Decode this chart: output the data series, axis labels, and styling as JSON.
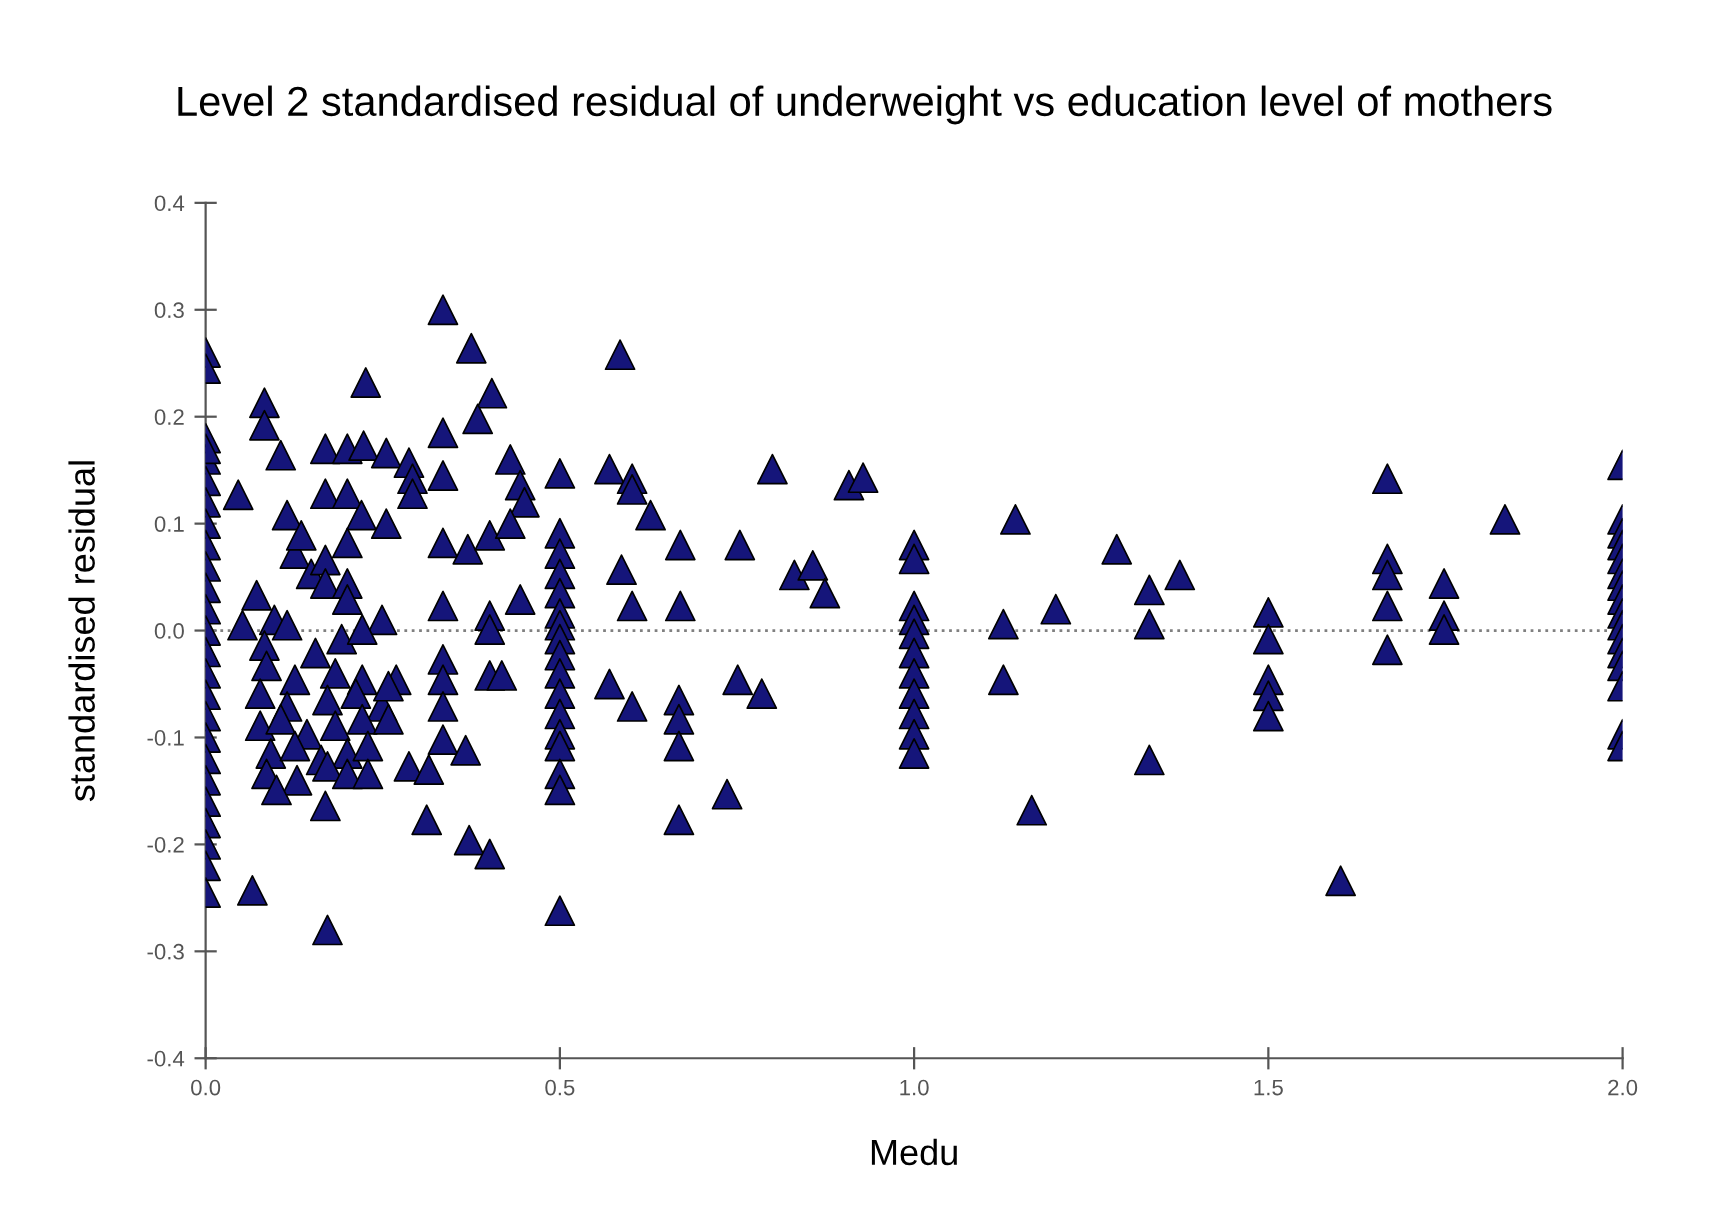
{
  "chart_data": {
    "type": "scatter",
    "title": "Level 2 standardised residual of underweight vs education level of mothers",
    "xlabel": "Medu",
    "ylabel": "standardised residual",
    "marker": "triangle",
    "grid": false,
    "legend": false,
    "xlim": [
      0,
      2.0
    ],
    "ylim": [
      -0.4,
      0.4
    ],
    "xticks": [
      {
        "value": 0,
        "label": "0.0"
      },
      {
        "value": 0.5,
        "label": "0.5"
      },
      {
        "value": 1.0,
        "label": "1.0"
      },
      {
        "value": 1.5,
        "label": "1.5"
      },
      {
        "value": 2.0,
        "label": "2.0"
      }
    ],
    "yticks": [
      {
        "value": -0.4,
        "label": "-0.4"
      },
      {
        "value": -0.3,
        "label": "-0.3"
      },
      {
        "value": -0.2,
        "label": "-0.2"
      },
      {
        "value": -0.1,
        "label": "-0.1"
      },
      {
        "value": 0,
        "label": "0.0"
      },
      {
        "value": 0.1,
        "label": "0.1"
      },
      {
        "value": 0.2,
        "label": "0.2"
      },
      {
        "value": 0.3,
        "label": "0.3"
      },
      {
        "value": 0.4,
        "label": "0.4"
      }
    ],
    "ref_lines": [
      {
        "axis": "y",
        "value": 0,
        "color": "#808080",
        "line_style": "dotted"
      }
    ],
    "series": [
      {
        "color": "#15157a",
        "x": [
          0,
          0,
          0,
          0,
          0,
          0,
          0,
          0,
          0,
          0,
          0,
          0,
          0,
          0,
          0,
          0,
          0,
          0,
          0,
          0,
          0,
          0,
          0,
          0,
          0,
          0.335,
          0.375,
          0.585,
          0.226,
          0.404,
          0.083,
          0.083,
          0.335,
          0.384,
          0.106,
          0.169,
          0.2,
          0.223,
          0.255,
          0.287,
          0.292,
          0.292,
          0.335,
          0.43,
          0.444,
          0.45,
          0.5,
          0.57,
          0.602,
          0.602,
          0.628,
          0.67,
          0.587,
          0.602,
          0.67,
          0.046,
          0.115,
          0.169,
          0.2,
          0.22,
          0.255,
          0.2,
          0.335,
          0.37,
          0.401,
          0.43,
          0.126,
          0.135,
          0.149,
          0.169,
          0.169,
          0.2,
          0.2,
          0.072,
          0.052,
          0.097,
          0.115,
          0.249,
          0.335,
          0.401,
          0.401,
          0.444,
          0.5,
          0.5,
          0.5,
          0.5,
          0.5,
          0.5,
          0.5,
          0.5,
          0.5,
          0.5,
          0.5,
          0.5,
          0.5,
          0.5,
          0.5,
          0.5,
          0.083,
          0.155,
          0.192,
          0.221,
          0.086,
          0.126,
          0.183,
          0.221,
          0.269,
          0.077,
          0.115,
          0.172,
          0.212,
          0.249,
          0.258,
          0.077,
          0.106,
          0.143,
          0.183,
          0.221,
          0.258,
          0.092,
          0.126,
          0.163,
          0.2,
          0.229,
          0.086,
          0.129,
          0.172,
          0.2,
          0.229,
          0.1,
          0.287,
          0.315,
          0.335,
          0.367,
          0.335,
          0.335,
          0.335,
          0.401,
          0.418,
          0.57,
          0.602,
          0.668,
          0.668,
          0.668,
          0.668,
          0.169,
          0.312,
          0.372,
          0.401,
          0.066,
          0.172,
          0.8,
          0.908,
          0.928,
          0.754,
          0.831,
          0.857,
          0.874,
          0.751,
          0.785,
          0.736,
          1.0,
          1.0,
          1.0,
          1.0,
          1.0,
          1.0,
          1.0,
          1.0,
          1.0,
          1.0,
          1.0,
          1.143,
          1.126,
          1.126,
          1.2,
          1.166,
          1.286,
          1.332,
          1.375,
          1.332,
          1.332,
          1.5,
          1.5,
          1.5,
          1.5,
          1.5,
          1.602,
          1.668,
          1.668,
          1.668,
          1.668,
          1.668,
          1.748,
          1.748,
          1.748,
          1.834,
          2.0,
          2.0,
          2.0,
          2.0,
          2.0,
          2.0,
          2.0,
          2.0,
          2.0,
          2.0,
          2.0,
          2.0,
          2.0,
          2.0,
          2.0,
          2.0
        ],
        "values": [
          0.26,
          0.245,
          0.18,
          0.16,
          0.14,
          0.12,
          0.1,
          0.08,
          0.06,
          0.04,
          0.02,
          0.0,
          -0.02,
          -0.04,
          -0.06,
          -0.08,
          -0.1,
          -0.12,
          -0.14,
          -0.16,
          -0.18,
          -0.2,
          -0.22,
          -0.245,
          0.17,
          0.3,
          0.264,
          0.258,
          0.232,
          0.222,
          0.213,
          0.192,
          0.185,
          0.198,
          0.164,
          0.17,
          0.17,
          0.173,
          0.166,
          0.157,
          0.142,
          0.128,
          0.145,
          0.16,
          0.136,
          0.12,
          0.147,
          0.151,
          0.142,
          0.132,
          0.108,
          0.08,
          0.057,
          0.023,
          0.023,
          0.127,
          0.108,
          0.128,
          0.128,
          0.108,
          0.1,
          0.082,
          0.082,
          0.076,
          0.089,
          0.1,
          0.072,
          0.089,
          0.053,
          0.066,
          0.044,
          0.044,
          0.029,
          0.033,
          0.005,
          0.01,
          0.005,
          0.01,
          0.023,
          0.014,
          0.001,
          0.029,
          0.091,
          0.072,
          0.053,
          0.035,
          0.016,
          0.005,
          -0.008,
          -0.023,
          -0.04,
          -0.059,
          -0.078,
          -0.097,
          -0.108,
          -0.134,
          -0.149,
          -0.262,
          -0.014,
          -0.021,
          -0.008,
          0.001,
          -0.033,
          -0.046,
          -0.04,
          -0.046,
          -0.046,
          -0.059,
          -0.071,
          -0.065,
          -0.059,
          -0.071,
          -0.052,
          -0.089,
          -0.083,
          -0.097,
          -0.089,
          -0.083,
          -0.083,
          -0.115,
          -0.108,
          -0.121,
          -0.115,
          -0.108,
          -0.134,
          -0.14,
          -0.127,
          -0.134,
          -0.134,
          -0.149,
          -0.127,
          -0.13,
          -0.102,
          -0.112,
          -0.027,
          -0.046,
          -0.071,
          -0.042,
          -0.042,
          -0.05,
          -0.071,
          -0.065,
          -0.083,
          -0.108,
          -0.177,
          -0.164,
          -0.177,
          -0.196,
          -0.209,
          -0.243,
          -0.28,
          0.151,
          0.136,
          0.143,
          0.08,
          0.052,
          0.061,
          0.035,
          -0.046,
          -0.059,
          -0.153,
          0.08,
          0.067,
          0.023,
          0.01,
          -0.003,
          -0.021,
          -0.04,
          -0.059,
          -0.078,
          -0.097,
          -0.115,
          0.104,
          0.006,
          -0.046,
          0.02,
          -0.168,
          0.076,
          0.038,
          0.052,
          0.006,
          -0.121,
          0.017,
          -0.008,
          -0.046,
          -0.061,
          -0.08,
          -0.234,
          0.142,
          0.067,
          0.052,
          0.023,
          -0.018,
          0.044,
          0.014,
          0.001,
          0.104,
          0.155,
          0.104,
          0.091,
          0.08,
          0.067,
          0.053,
          0.042,
          0.029,
          0.016,
          0.005,
          -0.008,
          -0.021,
          -0.033,
          -0.052,
          -0.097,
          -0.108
        ]
      }
    ]
  }
}
